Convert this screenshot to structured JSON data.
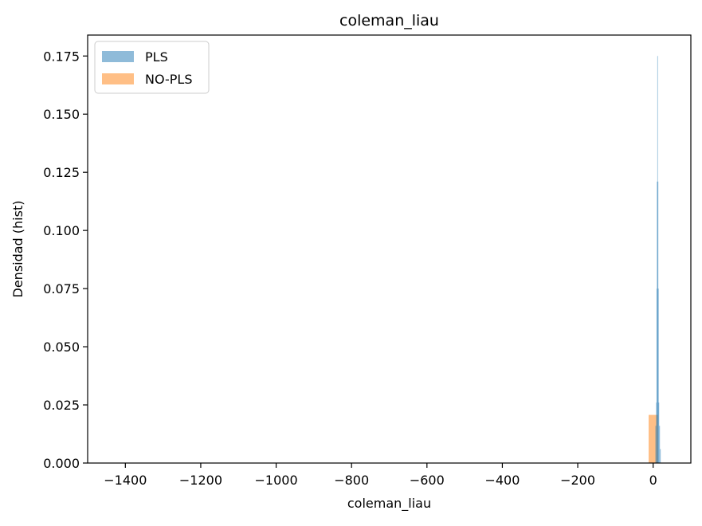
{
  "chart_data": {
    "type": "bar",
    "title": "coleman_liau",
    "xlabel": "coleman_liau",
    "ylabel": "Densidad (hist)",
    "xlim": [
      -1500,
      100
    ],
    "ylim": [
      0,
      0.184
    ],
    "x_ticks": [
      -1400,
      -1200,
      -1000,
      -800,
      -600,
      -400,
      -200,
      0
    ],
    "x_tick_labels": [
      "−1400",
      "−1200",
      "−1000",
      "−800",
      "−600",
      "−400",
      "−200",
      "0"
    ],
    "y_ticks": [
      0.0,
      0.025,
      0.05,
      0.075,
      0.1,
      0.125,
      0.15,
      0.175
    ],
    "y_tick_labels": [
      "0.000",
      "0.025",
      "0.050",
      "0.075",
      "0.100",
      "0.125",
      "0.150",
      "0.175"
    ],
    "grid": false,
    "legend_position": "top-left",
    "series": [
      {
        "name": "PLS",
        "color": "#1f77b4",
        "alpha": 0.5,
        "bins": [
          {
            "x0": 6,
            "x1": 8,
            "value": 0.016
          },
          {
            "x0": 8,
            "x1": 9,
            "value": 0.026
          },
          {
            "x0": 9,
            "x1": 10,
            "value": 0.075
          },
          {
            "x0": 10,
            "x1": 11,
            "value": 0.121
          },
          {
            "x0": 11,
            "x1": 12,
            "value": 0.175
          },
          {
            "x0": 12,
            "x1": 13,
            "value": 0.121
          },
          {
            "x0": 13,
            "x1": 14,
            "value": 0.075
          },
          {
            "x0": 14,
            "x1": 16,
            "value": 0.026
          },
          {
            "x0": 16,
            "x1": 18,
            "value": 0.016
          },
          {
            "x0": 18,
            "x1": 20,
            "value": 0.006
          }
        ]
      },
      {
        "name": "NO-PLS",
        "color": "#ff7f0e",
        "alpha": 0.5,
        "bins": [
          {
            "x0": -12,
            "x1": 13,
            "value": 0.0207
          }
        ]
      }
    ]
  }
}
